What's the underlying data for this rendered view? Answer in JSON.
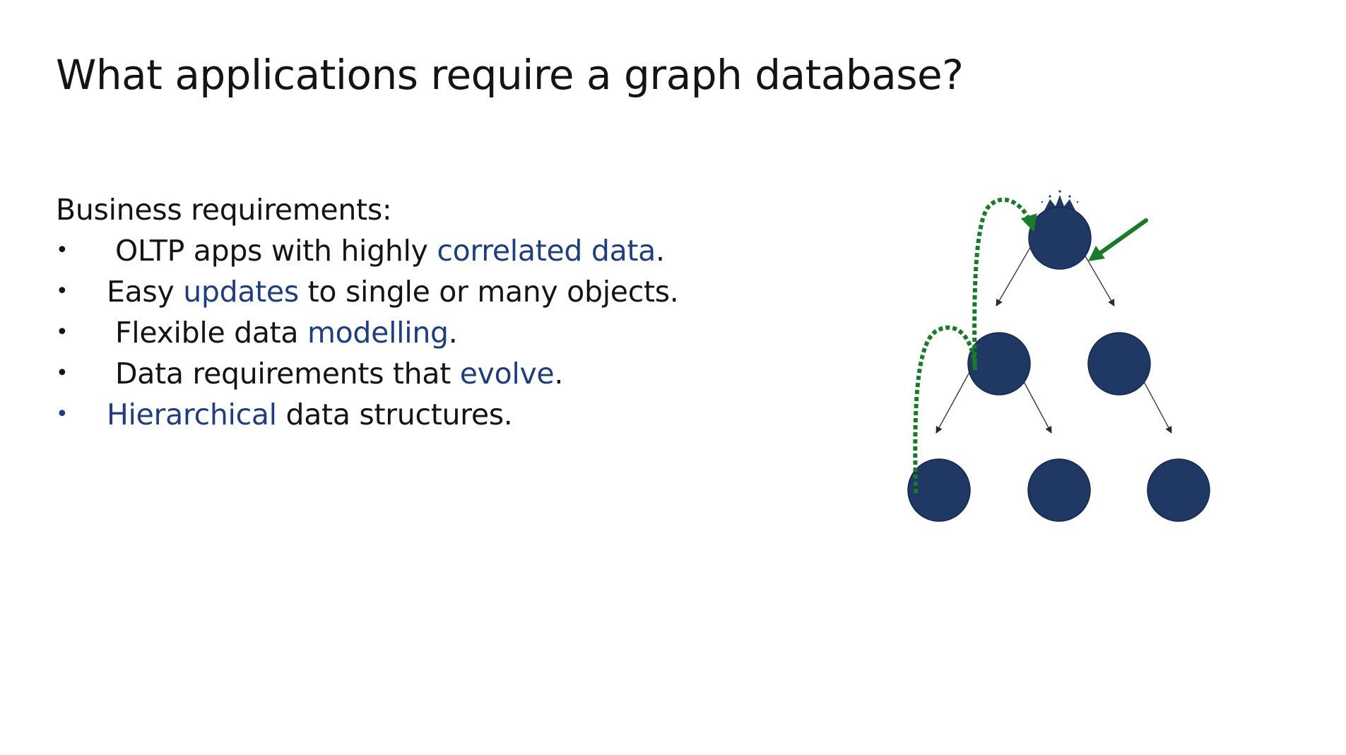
{
  "title": "What applications require a graph database?",
  "requirements": {
    "heading": "Business requirements:",
    "items": [
      {
        "before": "OLTP apps with highly ",
        "highlight": "correlated data",
        "after": "."
      },
      {
        "before": "Easy ",
        "highlight": "updates",
        "after": " to single or many objects."
      },
      {
        "before": "Flexible data ",
        "highlight": "modelling",
        "after": "."
      },
      {
        "before": "Data requirements that ",
        "highlight": "evolve",
        "after": "."
      },
      {
        "before": "",
        "highlight": "Hierarchical",
        "after": " data structures."
      }
    ]
  },
  "colors": {
    "text": "#141414",
    "highlight": "#1f3e7c",
    "node_fill": "#1f3864",
    "arrow_green": "#1a7a2a"
  },
  "diagram": {
    "nodes": [
      "root",
      "child-left",
      "child-right",
      "leaf-1",
      "leaf-2",
      "leaf-3"
    ],
    "edges": [
      [
        "root",
        "child-left"
      ],
      [
        "root",
        "child-right"
      ],
      [
        "child-left",
        "leaf-1"
      ],
      [
        "child-left",
        "leaf-2"
      ],
      [
        "child-right",
        "leaf-3"
      ]
    ],
    "root_marker": "crown-icon",
    "pointer": "green-arrow-icon"
  }
}
